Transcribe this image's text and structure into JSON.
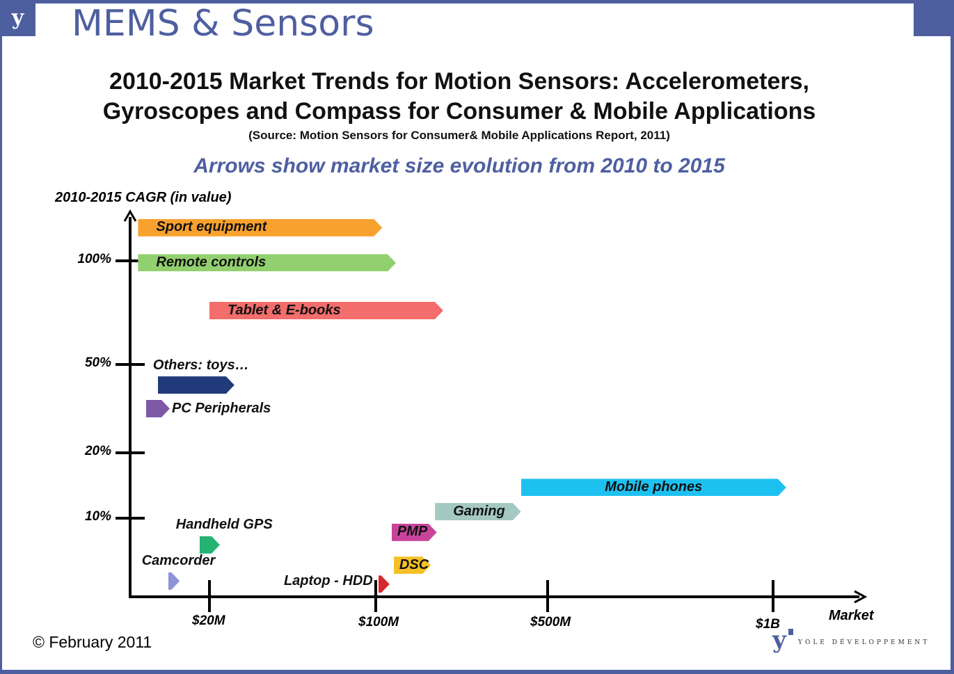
{
  "header": {
    "logo": "y",
    "brand": "MEMS & Sensors"
  },
  "title_line1": "2010-2015 Market Trends for Motion Sensors: Accelerometers,",
  "title_line2": "Gyroscopes and Compass for Consumer & Mobile Applications",
  "source": "(Source: Motion Sensors for Consumer& Mobile Applications Report, 2011)",
  "subtitle": "Arrows show market size evolution from 2010 to 2015",
  "footer": {
    "copyright": "© February 2011",
    "company": "YOLE DÉVELOPPEMENT"
  },
  "chart_data": {
    "type": "bar",
    "ylabel": "2010-2015 CAGR (in value)",
    "xlabel": "Market",
    "x_ticks": [
      {
        "value": 20,
        "label": "$20M"
      },
      {
        "value": 100,
        "label": "$100M"
      },
      {
        "value": 500,
        "label": "$500M"
      },
      {
        "value": 1000,
        "label": "$1B"
      }
    ],
    "y_ticks": [
      {
        "value": 10,
        "label": "10%"
      },
      {
        "value": 20,
        "label": "20%"
      },
      {
        "value": 50,
        "label": "50%"
      },
      {
        "value": 100,
        "label": "100%"
      }
    ],
    "x_units": "US$ millions (market size 2010 → 2015)",
    "y_units": "percent CAGR",
    "series": [
      {
        "name": "Sport equipment",
        "cagr": 116,
        "start": 2,
        "end": 115,
        "color": "#F9A12E",
        "label_pos": "inside-left"
      },
      {
        "name": "Remote controls",
        "cagr": 99,
        "start": 2,
        "end": 147,
        "color": "#92D06F",
        "label_pos": "inside-left"
      },
      {
        "name": "Tablet & E-books",
        "cagr": 76,
        "start": 20,
        "end": 257,
        "color": "#F26D6B",
        "label_pos": "inside-left"
      },
      {
        "name": "Others: toys…",
        "cagr": 43,
        "start": 7,
        "end": 32,
        "color": "#213A7A",
        "label_pos": "above"
      },
      {
        "name": "PC Peripherals",
        "cagr": 35,
        "start": 4,
        "end": 10,
        "color": "#7E57A6",
        "label_pos": "right"
      },
      {
        "name": "Mobile phones",
        "cagr": 14.7,
        "start": 438,
        "end": 1029,
        "color": "#1DC1F0",
        "label_pos": "inside-center"
      },
      {
        "name": "Gaming",
        "cagr": 11,
        "start": 238,
        "end": 438,
        "color": "#A4C8C2",
        "label_pos": "inside-left"
      },
      {
        "name": "PMP",
        "cagr": 8.2,
        "start": 137,
        "end": 242,
        "color": "#C8449A",
        "label_pos": "inside-left"
      },
      {
        "name": "Handheld GPS",
        "cagr": 6.6,
        "start": 17.5,
        "end": 25,
        "color": "#25B273",
        "label_pos": "above"
      },
      {
        "name": "DSC",
        "cagr": 4,
        "start": 142,
        "end": 228,
        "color": "#F5C026",
        "label_pos": "inside-left"
      },
      {
        "name": "Camcorder",
        "cagr": 2,
        "start": 9.6,
        "end": 12.5,
        "color": "#8F94D6",
        "label_pos": "above"
      },
      {
        "name": "Laptop - HDD",
        "cagr": 1.6,
        "start": 106,
        "end": 132,
        "color": "#D62A2A",
        "label_pos": "left"
      }
    ]
  }
}
